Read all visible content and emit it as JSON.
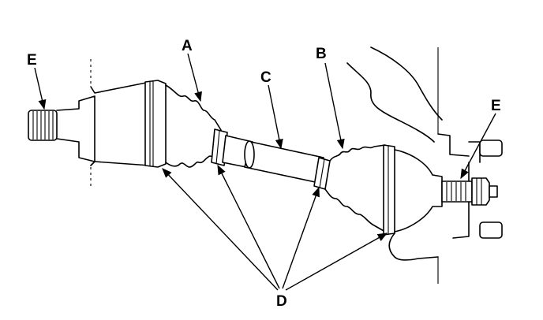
{
  "callouts": {
    "A": "A",
    "B": "B",
    "C": "C",
    "D": "D",
    "E_left": "E",
    "E_right": "E"
  }
}
